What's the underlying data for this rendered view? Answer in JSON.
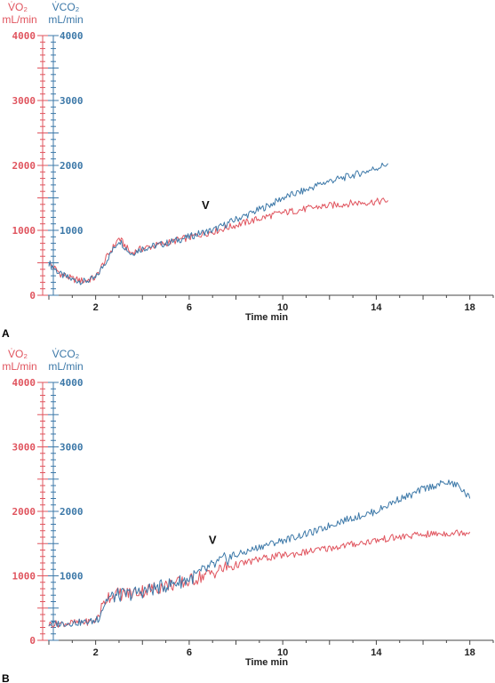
{
  "figure": {
    "colors": {
      "vo2": "#e0545e",
      "vco2": "#3c78a8",
      "axis": "#444444"
    }
  },
  "chart_data": [
    {
      "type": "line",
      "panel_label": "A",
      "x_axis": {
        "label": "Time min",
        "tick_labels": [
          "2",
          "6",
          "10",
          "14",
          "18"
        ],
        "range": [
          0,
          19
        ]
      },
      "left_axis": {
        "heading": "V̇O₂",
        "unit": "mL/min",
        "tick_labels": [
          "0",
          "1000",
          "2000",
          "3000",
          "4000"
        ],
        "range": [
          0,
          4000
        ]
      },
      "right_axis": {
        "heading": "V̇CO₂",
        "unit": "mL/min",
        "tick_labels": [
          "1000",
          "2000",
          "3000",
          "4000"
        ],
        "range": [
          0,
          4000
        ]
      },
      "marker": {
        "symbol": "V",
        "x": 6.7
      },
      "series": [
        {
          "name": "V̇CO₂",
          "x": [
            0,
            0.5,
            1,
            1.5,
            2,
            2.5,
            3,
            3.5,
            4,
            4.5,
            5,
            5.5,
            6,
            6.5,
            7,
            7.5,
            8,
            8.5,
            9,
            9.5,
            10,
            10.5,
            11,
            11.5,
            12,
            12.5,
            13,
            13.5,
            14,
            14.5
          ],
          "y": [
            500,
            320,
            240,
            210,
            260,
            560,
            850,
            640,
            720,
            760,
            800,
            850,
            900,
            960,
            1000,
            1080,
            1170,
            1240,
            1320,
            1400,
            1500,
            1560,
            1620,
            1700,
            1760,
            1800,
            1850,
            1900,
            1960,
            2030
          ]
        },
        {
          "name": "V̇O₂",
          "x": [
            0,
            0.5,
            1,
            1.5,
            2,
            2.5,
            3,
            3.5,
            4,
            4.5,
            5,
            5.5,
            6,
            6.5,
            7,
            7.5,
            8,
            8.5,
            9,
            9.5,
            10,
            10.5,
            11,
            11.5,
            12,
            12.5,
            13,
            13.5,
            14,
            14.5
          ],
          "y": [
            500,
            330,
            250,
            220,
            270,
            600,
            880,
            650,
            720,
            760,
            800,
            850,
            890,
            940,
            980,
            1030,
            1080,
            1130,
            1180,
            1230,
            1270,
            1300,
            1330,
            1360,
            1380,
            1400,
            1420,
            1430,
            1440,
            1460
          ]
        }
      ]
    },
    {
      "type": "line",
      "panel_label": "B",
      "x_axis": {
        "label": "Time min",
        "tick_labels": [
          "2",
          "6",
          "10",
          "14",
          "18"
        ],
        "range": [
          0,
          19
        ]
      },
      "left_axis": {
        "heading": "V̇O₂",
        "unit": "mL/min",
        "tick_labels": [
          "0",
          "1000",
          "2000",
          "3000",
          "4000"
        ],
        "range": [
          0,
          4000
        ]
      },
      "right_axis": {
        "heading": "V̇CO₂",
        "unit": "mL/min",
        "tick_labels": [
          "1000",
          "2000",
          "3000",
          "4000"
        ],
        "range": [
          0,
          4000
        ]
      },
      "marker": {
        "symbol": "V",
        "x": 7.0
      },
      "series": [
        {
          "name": "V̇CO₂",
          "x": [
            0,
            0.5,
            1,
            1.5,
            2,
            2.5,
            3,
            3.5,
            4,
            4.5,
            5,
            5.5,
            6,
            6.5,
            7,
            7.5,
            8,
            8.5,
            9,
            9.5,
            10,
            10.5,
            11,
            11.5,
            12,
            12.5,
            13,
            13.5,
            14,
            14.5,
            15,
            15.5,
            16,
            16.5,
            17,
            17.5,
            18
          ],
          "y": [
            250,
            260,
            270,
            280,
            300,
            650,
            700,
            720,
            760,
            800,
            850,
            900,
            950,
            1050,
            1150,
            1250,
            1320,
            1380,
            1450,
            1500,
            1550,
            1600,
            1650,
            1700,
            1780,
            1850,
            1900,
            1950,
            2000,
            2100,
            2200,
            2250,
            2350,
            2400,
            2450,
            2400,
            2200
          ]
        },
        {
          "name": "V̇O₂",
          "x": [
            0,
            0.5,
            1,
            1.5,
            2,
            2.5,
            3,
            3.5,
            4,
            4.5,
            5,
            5.5,
            6,
            6.5,
            7,
            7.5,
            8,
            8.5,
            9,
            9.5,
            10,
            10.5,
            11,
            11.5,
            12,
            12.5,
            13,
            13.5,
            14,
            14.5,
            15,
            15.5,
            16,
            16.5,
            17,
            17.5,
            18
          ],
          "y": [
            250,
            260,
            270,
            280,
            300,
            680,
            720,
            730,
            770,
            810,
            850,
            880,
            920,
            990,
            1050,
            1120,
            1170,
            1210,
            1260,
            1290,
            1320,
            1340,
            1370,
            1400,
            1430,
            1460,
            1490,
            1520,
            1550,
            1580,
            1600,
            1620,
            1640,
            1650,
            1660,
            1670,
            1680
          ]
        }
      ]
    }
  ]
}
